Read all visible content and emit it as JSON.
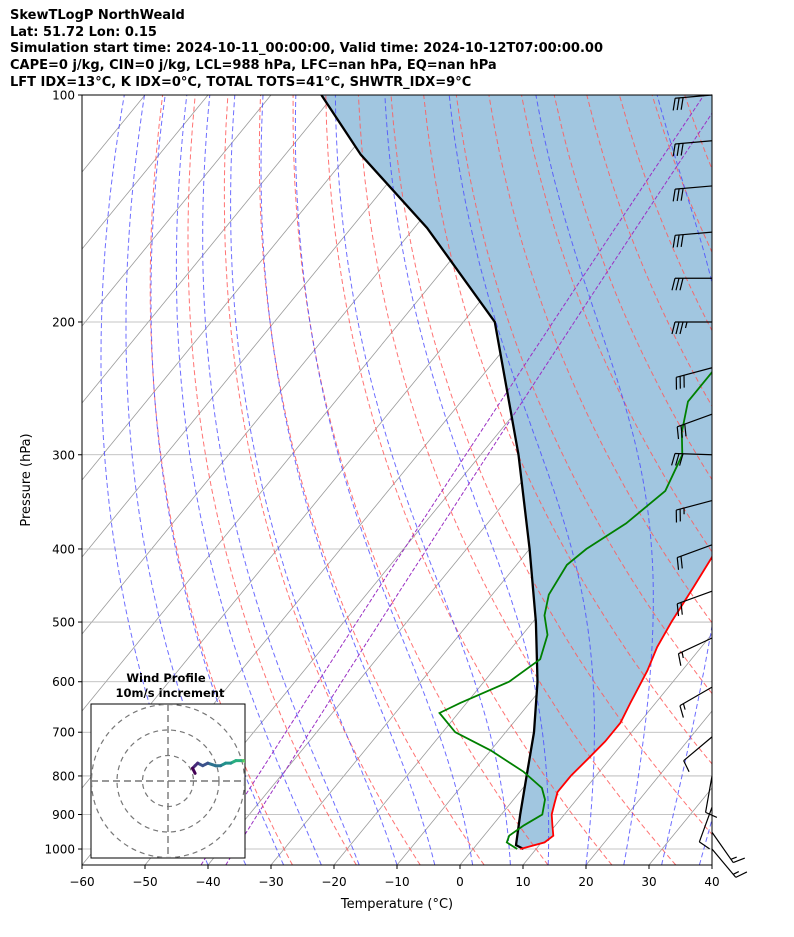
{
  "header": {
    "line1": "SkewTLogP NorthWeald",
    "line2": "Lat: 51.72   Lon: 0.15",
    "line3": "Simulation start time: 2024-10-11_00:00:00, Valid time: 2024-10-12T07:00:00.00",
    "line4": "CAPE=0 j/kg, CIN=0 j/kg, LCL=988 hPa, LFC=nan hPa, EQ=nan hPa",
    "line5": "LFT IDX=13°C, K IDX=0°C, TOTAL TOTS=41°C, SHWTR_IDX=9°C"
  },
  "chart_data": {
    "type": "skew-t log-p",
    "title": "",
    "xlabel": "Temperature (°C)",
    "ylabel": "Pressure (hPa)",
    "xlim": [
      -60,
      40
    ],
    "ylim": [
      1050,
      100
    ],
    "y_scale": "log",
    "x_ticks": [
      -60,
      -50,
      -40,
      -30,
      -20,
      -10,
      0,
      10,
      20,
      30,
      40
    ],
    "x_tick_labels": [
      "−60",
      "−50",
      "−40",
      "−30",
      "−20",
      "−10",
      "0",
      "10",
      "20",
      "30",
      "40"
    ],
    "y_ticks": [
      100,
      200,
      300,
      400,
      500,
      600,
      700,
      800,
      900,
      1000
    ],
    "y_tick_labels": [
      "100",
      "200",
      "300",
      "400",
      "500",
      "600",
      "700",
      "800",
      "900",
      "1000"
    ],
    "grid": true,
    "colors": {
      "temperature": "#ff0000",
      "dewpoint": "#008000",
      "parcel": "#000000",
      "cape_fill": "#a1c6e0",
      "dry_adiabats": "#ff5a5a",
      "moist_adiabats": "#4a4aff",
      "mixing_ratio": "#9b30c4",
      "isotherms": "#9a9a9a"
    },
    "series": [
      {
        "role": "temperature",
        "points": [
          [
            7.5,
            1000
          ],
          [
            10.5,
            980
          ],
          [
            11,
            960
          ],
          [
            9.5,
            930
          ],
          [
            8,
            900
          ],
          [
            7,
            870
          ],
          [
            6,
            840
          ],
          [
            6,
            800
          ],
          [
            6.5,
            760
          ],
          [
            7,
            720
          ],
          [
            7,
            680
          ],
          [
            6,
            640
          ],
          [
            4.5,
            580
          ],
          [
            3,
            540
          ],
          [
            2,
            500
          ],
          [
            1,
            450
          ],
          [
            0,
            410
          ],
          [
            -2,
            380
          ],
          [
            -4,
            350
          ],
          [
            -6,
            320
          ],
          [
            -8,
            290
          ],
          [
            -9.5,
            270
          ],
          [
            -10,
            255
          ],
          [
            -11,
            235
          ],
          [
            -10,
            220
          ],
          [
            -8,
            210
          ],
          [
            -4,
            195
          ],
          [
            -2,
            180
          ],
          [
            0,
            165
          ],
          [
            1.5,
            150
          ],
          [
            3,
            135
          ],
          [
            4.5,
            122
          ],
          [
            6,
            112
          ],
          [
            8,
            104
          ],
          [
            9,
            100
          ]
        ]
      },
      {
        "role": "dewpoint",
        "points": [
          [
            7,
            1000
          ],
          [
            4.5,
            980
          ],
          [
            4,
            960
          ],
          [
            5,
            930
          ],
          [
            6.5,
            900
          ],
          [
            5,
            860
          ],
          [
            3,
            830
          ],
          [
            -2,
            790
          ],
          [
            -10,
            740
          ],
          [
            -18,
            700
          ],
          [
            -23,
            660
          ],
          [
            -21,
            640
          ],
          [
            -16,
            600
          ],
          [
            -14,
            560
          ],
          [
            -16,
            520
          ],
          [
            -19,
            490
          ],
          [
            -21,
            460
          ],
          [
            -22,
            420
          ],
          [
            -21,
            400
          ],
          [
            -18,
            370
          ],
          [
            -16,
            335
          ],
          [
            -18,
            300
          ],
          [
            -21,
            280
          ],
          [
            -24,
            255
          ],
          [
            -24,
            230
          ],
          [
            -24,
            210
          ],
          [
            -25,
            195
          ],
          [
            -24,
            180
          ],
          [
            -23,
            165
          ],
          [
            -22,
            155
          ],
          [
            -23,
            142
          ],
          [
            -25,
            130
          ],
          [
            -24,
            120
          ],
          [
            -21,
            110
          ],
          [
            -18,
            100
          ]
        ]
      },
      {
        "role": "parcel",
        "points": [
          [
            8,
            1000
          ],
          [
            6.3,
            988
          ],
          [
            3,
            900
          ],
          [
            -1,
            800
          ],
          [
            -5.5,
            700
          ],
          [
            -11.5,
            600
          ],
          [
            -19.5,
            500
          ],
          [
            -30,
            400
          ],
          [
            -44,
            300
          ],
          [
            -65,
            200
          ],
          [
            -88,
            150
          ],
          [
            -108,
            120
          ],
          [
            -122,
            100
          ]
        ]
      }
    ],
    "wind_profile": {
      "title": "Wind Profile",
      "subtitle": "10m/s increment",
      "hodograph_uv": [
        [
          7,
          1
        ],
        [
          7.5,
          2
        ],
        [
          6.5,
          4
        ],
        [
          5,
          5
        ],
        [
          3,
          7
        ],
        [
          1,
          8
        ],
        [
          0,
          8
        ],
        [
          -2,
          8
        ],
        [
          -4,
          7
        ],
        [
          -6,
          7
        ],
        [
          -8,
          6
        ],
        [
          -10,
          6
        ],
        [
          -13,
          7
        ],
        [
          -15,
          6
        ],
        [
          -17,
          7
        ],
        [
          -18,
          6
        ],
        [
          -19,
          5
        ],
        [
          -18,
          3
        ]
      ],
      "hodograph_colormap": "viridis",
      "rings_ms": [
        10,
        20,
        30
      ]
    },
    "wind_barbs": [
      {
        "p": 100,
        "speed_kt": 30,
        "dir": 265
      },
      {
        "p": 115,
        "speed_kt": 30,
        "dir": 265
      },
      {
        "p": 132,
        "speed_kt": 30,
        "dir": 265
      },
      {
        "p": 152,
        "speed_kt": 30,
        "dir": 265
      },
      {
        "p": 175,
        "speed_kt": 30,
        "dir": 270
      },
      {
        "p": 200,
        "speed_kt": 35,
        "dir": 270
      },
      {
        "p": 230,
        "speed_kt": 30,
        "dir": 255
      },
      {
        "p": 265,
        "speed_kt": 30,
        "dir": 250
      },
      {
        "p": 300,
        "speed_kt": 30,
        "dir": 272
      },
      {
        "p": 345,
        "speed_kt": 25,
        "dir": 255
      },
      {
        "p": 395,
        "speed_kt": 20,
        "dir": 250
      },
      {
        "p": 455,
        "speed_kt": 20,
        "dir": 250
      },
      {
        "p": 525,
        "speed_kt": 15,
        "dir": 245
      },
      {
        "p": 610,
        "speed_kt": 15,
        "dir": 240
      },
      {
        "p": 710,
        "speed_kt": 10,
        "dir": 230
      },
      {
        "p": 800,
        "speed_kt": 10,
        "dir": 190
      },
      {
        "p": 880,
        "speed_kt": 10,
        "dir": 200
      },
      {
        "p": 950,
        "speed_kt": 15,
        "dir": 145
      },
      {
        "p": 1000,
        "speed_kt": 15,
        "dir": 140
      }
    ]
  }
}
